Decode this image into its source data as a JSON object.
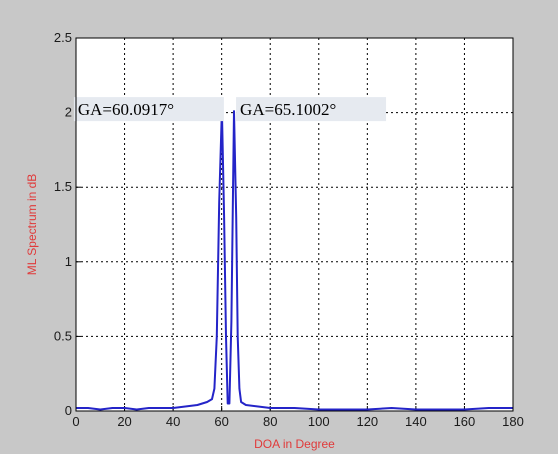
{
  "colors": {
    "figure_background": "#c8c8c8",
    "axes_background": "#ffffff",
    "series_line": "#2424c8",
    "axis_label_text": "#e03a3a",
    "annotation_background": "#e6eaf0"
  },
  "chart_data": {
    "type": "line",
    "title": "",
    "xlabel": "DOA in Degree",
    "ylabel": "ML Spectrum in dB",
    "xlim": [
      0,
      180
    ],
    "ylim": [
      0,
      2.5
    ],
    "grid": true,
    "xticks": [
      "0",
      "20",
      "40",
      "60",
      "80",
      "100",
      "120",
      "140",
      "160",
      "180"
    ],
    "yticks": [
      "0",
      "0.5",
      "1",
      "1.5",
      "2",
      "2.5"
    ],
    "series": [
      {
        "x": [
          0,
          5,
          10,
          15,
          20,
          25,
          30,
          35,
          40,
          45,
          50,
          54,
          56,
          57,
          58,
          59,
          60.09,
          61,
          61.8,
          62.5,
          63.2,
          64,
          65.1,
          66,
          66.6,
          67.3,
          68,
          70,
          75,
          80,
          90,
          100,
          110,
          120,
          130,
          140,
          150,
          160,
          170,
          180
        ],
        "y": [
          0.02,
          0.02,
          0.01,
          0.02,
          0.02,
          0.01,
          0.02,
          0.02,
          0.02,
          0.03,
          0.04,
          0.06,
          0.08,
          0.15,
          0.5,
          1.4,
          2.02,
          1.3,
          0.5,
          0.05,
          0.05,
          0.6,
          2.01,
          1.3,
          0.5,
          0.15,
          0.06,
          0.04,
          0.03,
          0.02,
          0.02,
          0.01,
          0.01,
          0.01,
          0.02,
          0.01,
          0.01,
          0.01,
          0.02,
          0.02
        ]
      }
    ],
    "annotations": [
      {
        "text": "GA=60.0917°",
        "x": 60.09,
        "y": 2.01
      },
      {
        "text": "GA=65.1002°",
        "x": 65.1,
        "y": 2.01
      }
    ]
  }
}
